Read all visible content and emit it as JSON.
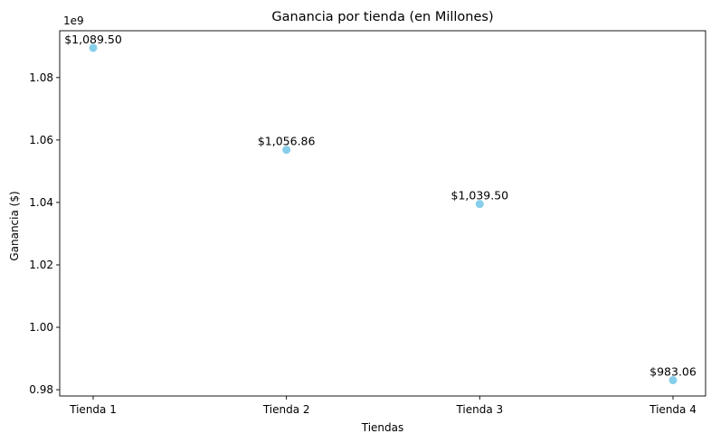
{
  "chart_data": {
    "type": "scatter",
    "title": "Ganancia por tienda (en Millones)",
    "xlabel": "Tiendas",
    "ylabel": "Ganancia ($)",
    "offset_text": "1e9",
    "categories": [
      "Tienda 1",
      "Tienda 2",
      "Tienda 3",
      "Tienda 4"
    ],
    "values": [
      1089.5,
      1056.86,
      1039.5,
      983.06
    ],
    "data_labels": [
      "$1,089.50",
      "$1,056.86",
      "$1,039.50",
      "$983.06"
    ],
    "ylim": [
      0.978,
      1.095
    ],
    "y_ticks": [
      0.98,
      1.0,
      1.02,
      1.04,
      1.06,
      1.08
    ],
    "y_tick_labels": [
      "0.98",
      "1.00",
      "1.02",
      "1.04",
      "1.06",
      "1.08"
    ],
    "y_scale_factor": 1000,
    "grid": false,
    "marker_color": "#87ceeb"
  }
}
